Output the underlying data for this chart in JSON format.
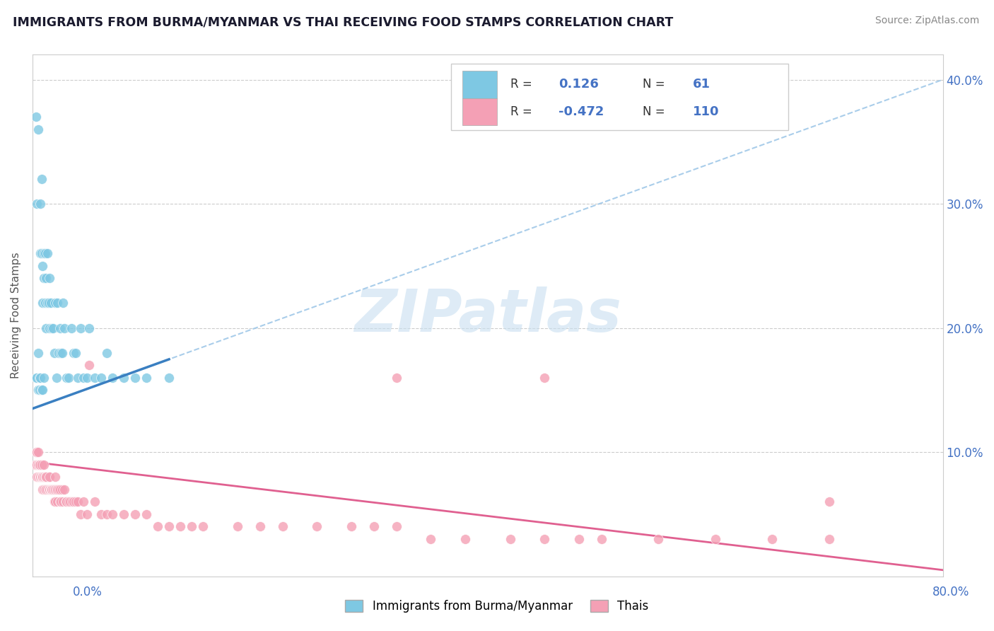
{
  "title": "IMMIGRANTS FROM BURMA/MYANMAR VS THAI RECEIVING FOOD STAMPS CORRELATION CHART",
  "source": "Source: ZipAtlas.com",
  "ylabel": "Receiving Food Stamps",
  "xlim": [
    0.0,
    0.8
  ],
  "ylim": [
    0.0,
    0.42
  ],
  "burma_R": 0.126,
  "burma_N": 61,
  "thai_R": -0.472,
  "thai_N": 110,
  "burma_color": "#7ec8e3",
  "thai_color": "#f4a0b5",
  "burma_line_color": "#3a7fc1",
  "thai_line_color": "#e06090",
  "burma_line_dash_color": "#a0c8e8",
  "legend_label_burma": "Immigrants from Burma/Myanmar",
  "legend_label_thai": "Thais",
  "burma_x": [
    0.003,
    0.003,
    0.004,
    0.004,
    0.005,
    0.005,
    0.005,
    0.006,
    0.006,
    0.007,
    0.007,
    0.007,
    0.008,
    0.008,
    0.008,
    0.009,
    0.009,
    0.009,
    0.01,
    0.01,
    0.01,
    0.011,
    0.011,
    0.012,
    0.012,
    0.013,
    0.013,
    0.014,
    0.015,
    0.015,
    0.016,
    0.017,
    0.018,
    0.019,
    0.02,
    0.021,
    0.022,
    0.023,
    0.024,
    0.025,
    0.026,
    0.027,
    0.028,
    0.03,
    0.032,
    0.034,
    0.036,
    0.038,
    0.04,
    0.042,
    0.045,
    0.048,
    0.05,
    0.055,
    0.06,
    0.065,
    0.07,
    0.08,
    0.09,
    0.1,
    0.12
  ],
  "burma_y": [
    0.37,
    0.16,
    0.3,
    0.16,
    0.36,
    0.18,
    0.15,
    0.16,
    0.15,
    0.3,
    0.26,
    0.16,
    0.32,
    0.26,
    0.15,
    0.25,
    0.22,
    0.15,
    0.26,
    0.24,
    0.16,
    0.26,
    0.22,
    0.24,
    0.2,
    0.26,
    0.22,
    0.22,
    0.24,
    0.2,
    0.22,
    0.2,
    0.2,
    0.18,
    0.22,
    0.16,
    0.22,
    0.18,
    0.2,
    0.18,
    0.18,
    0.22,
    0.2,
    0.16,
    0.16,
    0.2,
    0.18,
    0.18,
    0.16,
    0.2,
    0.16,
    0.16,
    0.2,
    0.16,
    0.16,
    0.18,
    0.16,
    0.16,
    0.16,
    0.16,
    0.16
  ],
  "thai_x": [
    0.002,
    0.003,
    0.003,
    0.004,
    0.004,
    0.004,
    0.005,
    0.005,
    0.005,
    0.006,
    0.006,
    0.006,
    0.007,
    0.007,
    0.007,
    0.007,
    0.008,
    0.008,
    0.008,
    0.008,
    0.009,
    0.009,
    0.009,
    0.009,
    0.01,
    0.01,
    0.01,
    0.011,
    0.011,
    0.012,
    0.012,
    0.012,
    0.013,
    0.013,
    0.014,
    0.014,
    0.015,
    0.015,
    0.015,
    0.016,
    0.016,
    0.017,
    0.017,
    0.018,
    0.018,
    0.019,
    0.019,
    0.02,
    0.02,
    0.021,
    0.022,
    0.022,
    0.023,
    0.024,
    0.024,
    0.025,
    0.026,
    0.027,
    0.028,
    0.029,
    0.03,
    0.032,
    0.033,
    0.035,
    0.036,
    0.038,
    0.04,
    0.042,
    0.045,
    0.048,
    0.05,
    0.055,
    0.06,
    0.065,
    0.07,
    0.08,
    0.09,
    0.1,
    0.11,
    0.12,
    0.13,
    0.14,
    0.15,
    0.18,
    0.2,
    0.22,
    0.25,
    0.28,
    0.3,
    0.32,
    0.35,
    0.38,
    0.42,
    0.45,
    0.48,
    0.5,
    0.55,
    0.6,
    0.65,
    0.7,
    0.32,
    0.45,
    0.7,
    0.005,
    0.006,
    0.008,
    0.01,
    0.012,
    0.015,
    0.02
  ],
  "thai_y": [
    0.09,
    0.1,
    0.09,
    0.1,
    0.09,
    0.08,
    0.09,
    0.08,
    0.09,
    0.09,
    0.09,
    0.08,
    0.09,
    0.09,
    0.08,
    0.08,
    0.09,
    0.09,
    0.08,
    0.08,
    0.09,
    0.08,
    0.08,
    0.07,
    0.08,
    0.08,
    0.07,
    0.08,
    0.07,
    0.08,
    0.08,
    0.07,
    0.08,
    0.07,
    0.08,
    0.07,
    0.08,
    0.07,
    0.07,
    0.07,
    0.07,
    0.07,
    0.07,
    0.07,
    0.07,
    0.07,
    0.06,
    0.07,
    0.06,
    0.07,
    0.07,
    0.06,
    0.07,
    0.06,
    0.07,
    0.06,
    0.07,
    0.06,
    0.07,
    0.06,
    0.06,
    0.06,
    0.06,
    0.06,
    0.06,
    0.06,
    0.06,
    0.05,
    0.06,
    0.05,
    0.17,
    0.06,
    0.05,
    0.05,
    0.05,
    0.05,
    0.05,
    0.05,
    0.04,
    0.04,
    0.04,
    0.04,
    0.04,
    0.04,
    0.04,
    0.04,
    0.04,
    0.04,
    0.04,
    0.04,
    0.03,
    0.03,
    0.03,
    0.03,
    0.03,
    0.03,
    0.03,
    0.03,
    0.03,
    0.03,
    0.16,
    0.16,
    0.06,
    0.1,
    0.09,
    0.09,
    0.09,
    0.08,
    0.08,
    0.08
  ],
  "burma_trendline_x": [
    0.0,
    0.8
  ],
  "burma_trendline_y_start": 0.135,
  "burma_trendline_y_end": 0.4,
  "thai_trendline_y_start": 0.092,
  "thai_trendline_y_end": 0.005
}
